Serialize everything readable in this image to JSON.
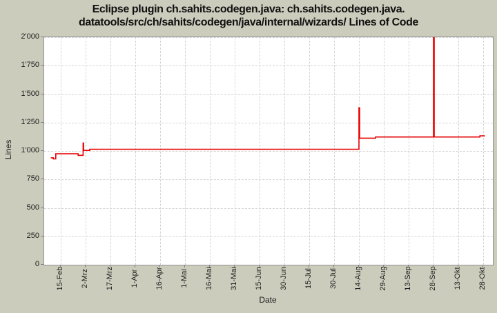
{
  "title": {
    "line1": "Eclipse plugin ch.sahits.codegen.java: ch.sahits.codegen.java.",
    "line2": "datatools/src/ch/sahits/codegen/java/internal/wizards/ Lines of Code"
  },
  "chart_data": {
    "type": "line",
    "title": "Eclipse plugin ch.sahits.codegen.java: ch.sahits.codegen.java.datatools/src/ch/sahits/codegen/java/internal/wizards/ Lines of Code",
    "xlabel": "Date",
    "ylabel": "Lines",
    "ylim": [
      0,
      2000
    ],
    "grid": true,
    "legend": false,
    "line_color": "#e60000",
    "y_ticks": [
      {
        "label": "0",
        "value": 0
      },
      {
        "label": "250",
        "value": 250
      },
      {
        "label": "500",
        "value": 500
      },
      {
        "label": "750",
        "value": 750
      },
      {
        "label": "1'000",
        "value": 1000
      },
      {
        "label": "1'250",
        "value": 1250
      },
      {
        "label": "1'500",
        "value": 1500
      },
      {
        "label": "1'750",
        "value": 1750
      },
      {
        "label": "2'000",
        "value": 2000
      }
    ],
    "x_ticks": [
      {
        "label": "15-Feb",
        "day": 0
      },
      {
        "label": "2-Mrz",
        "day": 15
      },
      {
        "label": "17-Mrz",
        "day": 30
      },
      {
        "label": "1-Apr",
        "day": 45
      },
      {
        "label": "16-Apr",
        "day": 60
      },
      {
        "label": "1-Mai",
        "day": 75
      },
      {
        "label": "16-Mai",
        "day": 90
      },
      {
        "label": "31-Mai",
        "day": 105
      },
      {
        "label": "15-Jun",
        "day": 120
      },
      {
        "label": "30-Jun",
        "day": 135
      },
      {
        "label": "15-Jul",
        "day": 150
      },
      {
        "label": "30-Jul",
        "day": 165
      },
      {
        "label": "14-Aug",
        "day": 180
      },
      {
        "label": "29-Aug",
        "day": 195
      },
      {
        "label": "13-Sep",
        "day": 210
      },
      {
        "label": "28-Sep",
        "day": 225
      },
      {
        "label": "13-Okt",
        "day": 240
      },
      {
        "label": "28-Okt",
        "day": 255
      }
    ],
    "series": [
      {
        "name": "Lines of Code",
        "color": "#e60000",
        "step_points": [
          [
            -6,
            940
          ],
          [
            -4.5,
            930
          ],
          [
            -3,
            975
          ],
          [
            10.5,
            962
          ],
          [
            13.5,
            1070
          ],
          [
            13.8,
            1005
          ],
          [
            17.5,
            1015
          ],
          [
            180,
            1380
          ],
          [
            180.4,
            1113
          ],
          [
            190,
            1123
          ],
          [
            225,
            2035
          ],
          [
            225.4,
            1123
          ],
          [
            253,
            1133
          ],
          [
            256,
            1133
          ]
        ]
      }
    ]
  },
  "colors": {
    "page_background": "#ccccbd",
    "plot_background": "#ffffff",
    "grid": "#d4d4d4",
    "border": "#8f8f8f",
    "series_red": "#e60000"
  }
}
